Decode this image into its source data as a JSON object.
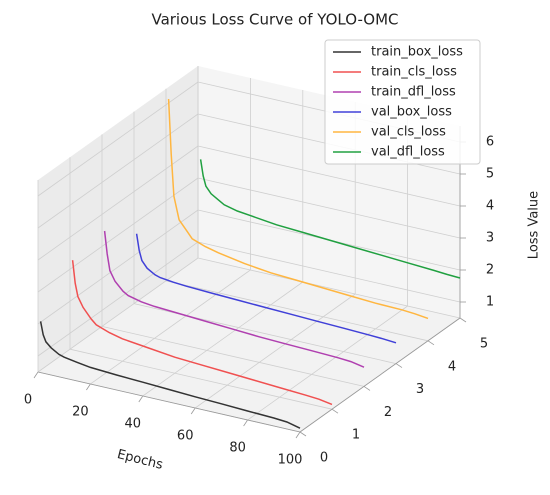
{
  "chart_data": {
    "type": "line3d",
    "title": "Various Loss Curve of YOLO-OMC",
    "xlabel": "Epochs",
    "zlabel": "Loss Value",
    "x": [
      1,
      2,
      3,
      5,
      8,
      10,
      15,
      20,
      30,
      40,
      50,
      60,
      70,
      80,
      90,
      95,
      100
    ],
    "series": [
      {
        "name": "train_box_loss",
        "color": "#333333",
        "values": [
          2.1,
          1.7,
          1.5,
          1.35,
          1.2,
          1.15,
          1.08,
          1.02,
          0.97,
          0.93,
          0.89,
          0.85,
          0.82,
          0.78,
          0.75,
          0.72,
          0.62
        ]
      },
      {
        "name": "train_cls_loss",
        "color": "#f05050",
        "values": [
          3.3,
          2.6,
          2.2,
          1.9,
          1.6,
          1.45,
          1.3,
          1.2,
          1.1,
          1.0,
          0.95,
          0.9,
          0.85,
          0.8,
          0.75,
          0.72,
          0.65
        ]
      },
      {
        "name": "train_dfl_loss",
        "color": "#b040b0",
        "values": [
          3.5,
          2.8,
          2.3,
          2.0,
          1.75,
          1.65,
          1.55,
          1.5,
          1.45,
          1.4,
          1.35,
          1.3,
          1.27,
          1.24,
          1.21,
          1.18,
          1.1
        ]
      },
      {
        "name": "val_box_loss",
        "color": "#4040d8",
        "values": [
          2.7,
          2.2,
          1.9,
          1.7,
          1.55,
          1.5,
          1.45,
          1.42,
          1.38,
          1.35,
          1.32,
          1.29,
          1.26,
          1.23,
          1.2,
          1.18,
          1.15
        ]
      },
      {
        "name": "val_cls_loss",
        "color": "#ffb640",
        "values": [
          6.2,
          4.5,
          3.2,
          2.5,
          2.2,
          2.0,
          1.85,
          1.75,
          1.6,
          1.5,
          1.45,
          1.4,
          1.35,
          1.3,
          1.28,
          1.25,
          1.2
        ]
      },
      {
        "name": "val_dfl_loss",
        "color": "#20a040",
        "values": [
          3.6,
          3.1,
          2.8,
          2.6,
          2.45,
          2.35,
          2.25,
          2.2,
          2.1,
          2.05,
          2.0,
          1.95,
          1.9,
          1.85,
          1.8,
          1.77,
          1.75
        ]
      }
    ],
    "xlim": [
      0,
      100
    ],
    "xticks": [
      0,
      20,
      40,
      60,
      80,
      100
    ],
    "ylim": [
      0,
      5
    ],
    "yticks": [
      0,
      1,
      2,
      3,
      4,
      5
    ],
    "zlim": [
      0.5,
      6.5
    ],
    "zticks": [
      1,
      2,
      3,
      4,
      5,
      6
    ],
    "grid": true,
    "legend": "upper right"
  }
}
